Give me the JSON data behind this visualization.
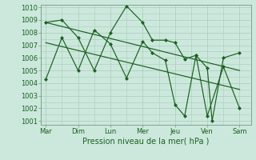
{
  "xlabel": "Pression niveau de la mer( hPa )",
  "bg_color": "#cce8dc",
  "grid_color": "#aaccbb",
  "line_color": "#1a6020",
  "ylim": [
    1001,
    1010
  ],
  "yticks": [
    1001,
    1002,
    1003,
    1004,
    1005,
    1006,
    1007,
    1008,
    1009,
    1010
  ],
  "x_labels": [
    "Mar",
    "Dim",
    "Lun",
    "Mer",
    "Jeu",
    "Ven",
    "Sam"
  ],
  "x_ticks": [
    0,
    1,
    2,
    3,
    4,
    5,
    6
  ],
  "series1_x": [
    0,
    0.5,
    1.0,
    1.5,
    2.0,
    2.5,
    3.0,
    3.3,
    3.7,
    4.0,
    4.3,
    4.65,
    5.0,
    5.5,
    6.0
  ],
  "series1_y": [
    1008.8,
    1009.0,
    1007.6,
    1005.0,
    1008.0,
    1010.1,
    1008.8,
    1007.4,
    1007.4,
    1007.2,
    1005.9,
    1006.2,
    1001.4,
    1005.3,
    1002.0
  ],
  "series2_x": [
    0,
    0.5,
    1.0,
    1.5,
    2.0,
    2.5,
    3.0,
    3.3,
    3.7,
    4.0,
    4.3,
    4.65,
    5.0,
    5.15,
    5.5,
    6.0
  ],
  "series2_y": [
    1004.3,
    1007.6,
    1005.0,
    1008.2,
    1007.1,
    1004.4,
    1007.3,
    1006.4,
    1005.8,
    1002.3,
    1001.4,
    1006.2,
    1005.2,
    1001.0,
    1006.0,
    1006.4
  ],
  "trend1_x": [
    0,
    6.0
  ],
  "trend1_y": [
    1008.8,
    1005.0
  ],
  "trend2_x": [
    0,
    6.0
  ],
  "trend2_y": [
    1007.2,
    1003.5
  ],
  "xlim": [
    -0.15,
    6.35
  ],
  "xlabel_fontsize": 7,
  "tick_fontsize": 6
}
